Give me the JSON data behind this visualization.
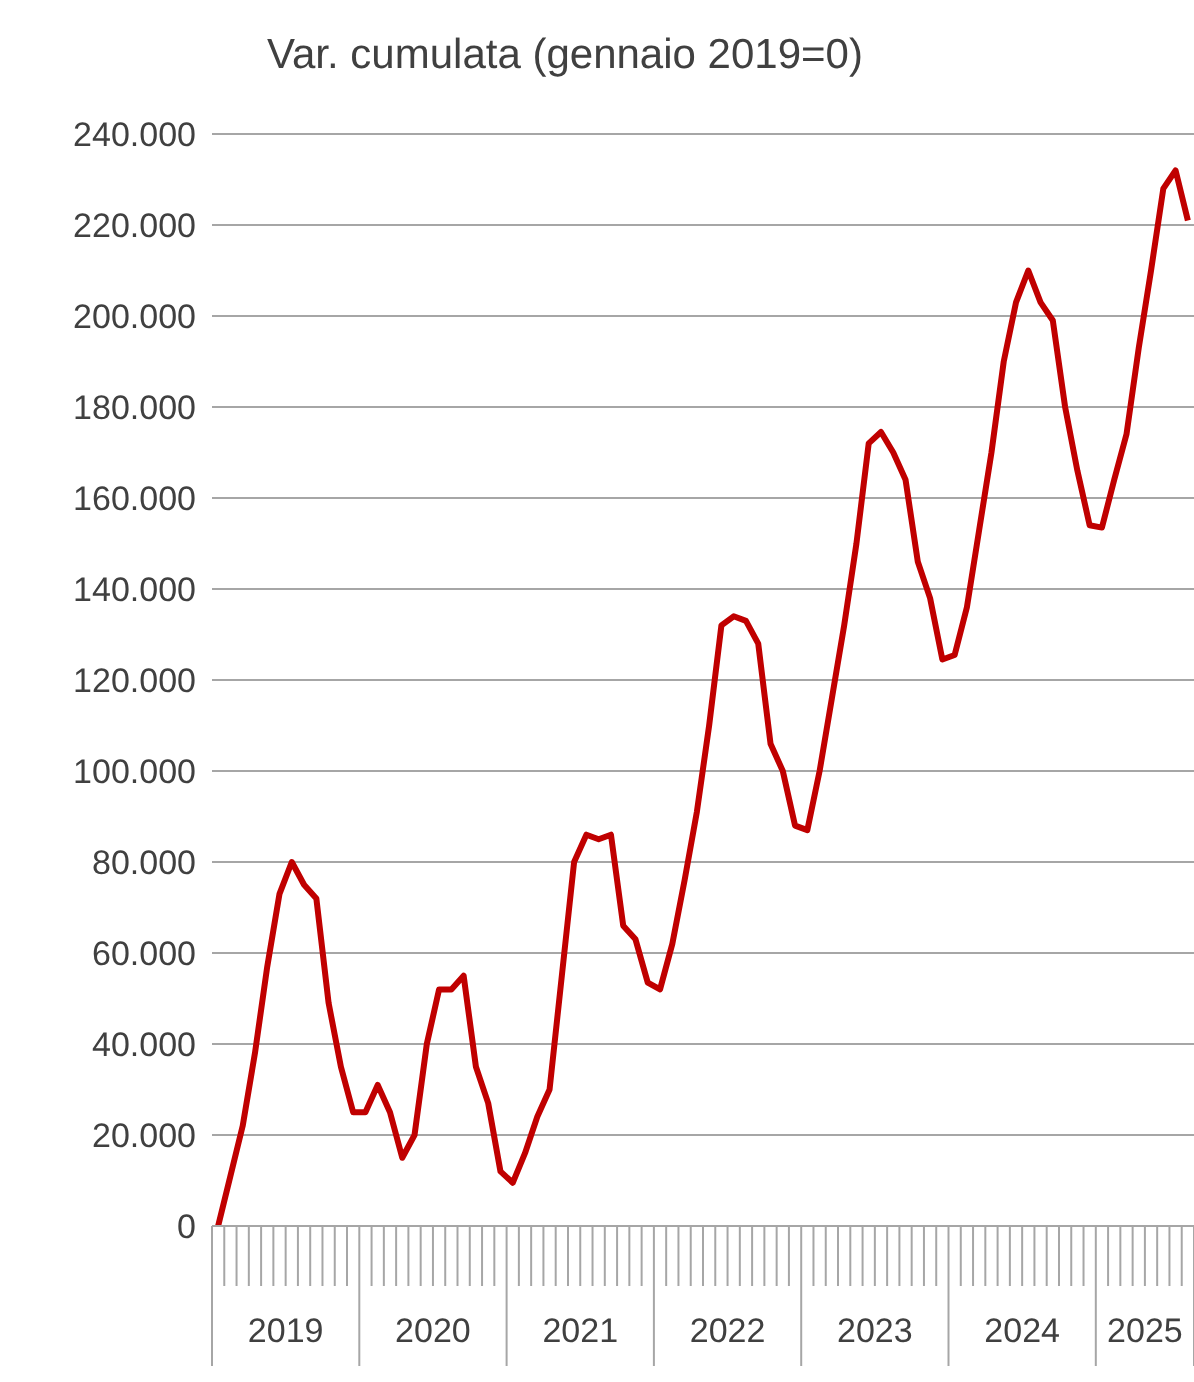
{
  "chart_data": {
    "type": "line",
    "title": "Var. cumulata (gennaio 2019=0)",
    "categories": [
      null,
      null,
      null,
      null,
      null,
      null,
      "2019",
      null,
      null,
      null,
      null,
      null,
      null,
      null,
      null,
      null,
      null,
      null,
      "2020",
      null,
      null,
      null,
      null,
      null,
      null,
      null,
      null,
      null,
      null,
      null,
      "2021",
      null,
      null,
      null,
      null,
      null,
      null,
      null,
      null,
      null,
      null,
      null,
      "2022",
      null,
      null,
      null,
      null,
      null,
      null,
      null,
      null,
      null,
      null,
      null,
      "2023",
      null,
      null,
      null,
      null,
      null,
      null,
      null,
      null,
      null,
      null,
      null,
      "2024",
      null,
      null,
      null,
      null,
      null,
      null,
      null,
      null,
      null,
      "2025",
      null,
      null,
      null
    ],
    "series": [
      {
        "color": "#c00000",
        "values": [
          0,
          11000,
          22000,
          38000,
          57000,
          73000,
          80000,
          75000,
          72000,
          49000,
          35000,
          25000,
          25000,
          31000,
          25000,
          15000,
          20000,
          40000,
          52000,
          52000,
          55000,
          35000,
          27000,
          12000,
          9500,
          16000,
          24000,
          30000,
          55000,
          80000,
          86000,
          85000,
          86000,
          66000,
          63000,
          53500,
          52000,
          62000,
          76000,
          91000,
          110000,
          132000,
          134000,
          133000,
          128000,
          106000,
          100000,
          88000,
          87000,
          100000,
          116000,
          132000,
          150000,
          172000,
          174500,
          170000,
          164000,
          146000,
          138000,
          124500,
          125500,
          136000,
          153000,
          170000,
          190000,
          203000,
          210000,
          203000,
          199000,
          180000,
          166000,
          154000,
          153500,
          164000,
          174000,
          193000,
          210000,
          228000,
          232000,
          221000
        ]
      }
    ],
    "ylim": [
      0,
      240000
    ],
    "yticks": [
      {
        "value": 0,
        "label": "0"
      },
      {
        "value": 20000,
        "label": "20.000"
      },
      {
        "value": 40000,
        "label": "40.000"
      },
      {
        "value": 60000,
        "label": "60.000"
      },
      {
        "value": 80000,
        "label": "80.000"
      },
      {
        "value": 100000,
        "label": "100.000"
      },
      {
        "value": 120000,
        "label": "120.000"
      },
      {
        "value": 140000,
        "label": "140.000"
      },
      {
        "value": 160000,
        "label": "160.000"
      },
      {
        "value": 180000,
        "label": "180.000"
      },
      {
        "value": 200000,
        "label": "200.000"
      },
      {
        "value": 220000,
        "label": "220.000"
      },
      {
        "value": 240000,
        "label": "240.000"
      }
    ],
    "grid": "y"
  }
}
